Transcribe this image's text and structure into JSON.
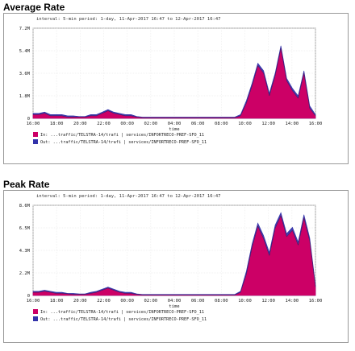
{
  "sections": [
    {
      "title": "Average Rate",
      "chart_data": {
        "type": "area",
        "header": "interval: 5-min  period: 1-day, 11-Apr-2017 16:47 to 12-Apr-2017 16:47",
        "xlabel": "time",
        "x_ticks": [
          "16:00",
          "18:00",
          "20:00",
          "22:00",
          "00:00",
          "02:00",
          "04:00",
          "06:00",
          "08:00",
          "10:00",
          "12:00",
          "14:00",
          "16:00"
        ],
        "y_ticks": [
          "0",
          "1.8M",
          "3.6M",
          "5.4M",
          "7.2M"
        ],
        "ylim": [
          0,
          7.2
        ],
        "legend": [
          {
            "name": "In: ...traffic/TELSTRA-14/trafi | services/INFORTRECO-PREF-SFO_11",
            "color": "#cc0066"
          },
          {
            "name": "Out: ...traffic/TELSTRA-14/trafi | services/INFORTRECO-PREF-SFO_11",
            "color": "#3333aa"
          }
        ],
        "series": [
          {
            "name": "In",
            "values": [
              0.3,
              0.3,
              0.4,
              0.2,
              0.2,
              0.2,
              0.1,
              0.1,
              0.1,
              0.1,
              0.2,
              0.2,
              0.4,
              0.6,
              0.4,
              0.3,
              0.2,
              0.2,
              0.1,
              0.05,
              0.05,
              0.05,
              0.05,
              0.05,
              0.05,
              0.05,
              0.05,
              0.05,
              0.05,
              0.05,
              0.05,
              0.05,
              0.05,
              0.05,
              0.05,
              0.05,
              0.2,
              1.2,
              2.6,
              4.2,
              3.6,
              1.8,
              3.4,
              5.6,
              3.0,
              2.2,
              1.6,
              3.6,
              0.8,
              0.2
            ]
          },
          {
            "name": "Out",
            "values": [
              0.4,
              0.4,
              0.5,
              0.3,
              0.3,
              0.3,
              0.2,
              0.2,
              0.15,
              0.15,
              0.3,
              0.3,
              0.5,
              0.7,
              0.5,
              0.4,
              0.3,
              0.3,
              0.15,
              0.1,
              0.1,
              0.1,
              0.1,
              0.1,
              0.1,
              0.1,
              0.1,
              0.1,
              0.1,
              0.1,
              0.1,
              0.1,
              0.1,
              0.1,
              0.1,
              0.1,
              0.3,
              1.4,
              2.8,
              4.4,
              3.8,
              2.0,
              3.6,
              5.8,
              3.2,
              2.4,
              1.8,
              3.8,
              1.0,
              0.3
            ]
          }
        ]
      }
    },
    {
      "title": "Peak Rate",
      "chart_data": {
        "type": "area",
        "header": "interval: 5-min  period: 1-day, 11-Apr-2017 16:47 to 12-Apr-2017 16:47",
        "xlabel": "time",
        "x_ticks": [
          "16:00",
          "18:00",
          "20:00",
          "22:00",
          "00:00",
          "02:00",
          "04:00",
          "06:00",
          "08:00",
          "10:00",
          "12:00",
          "14:00",
          "16:00"
        ],
        "y_ticks": [
          "0",
          "2.2M",
          "4.3M",
          "6.5M",
          "8.6M"
        ],
        "ylim": [
          0,
          8.6
        ],
        "legend": [
          {
            "name": "In: ...traffic/TELSTRA-14/trafi | services/INFORTRECO-PREF-SFO_11",
            "color": "#cc0066"
          },
          {
            "name": "Out: ...traffic/TELSTRA-14/trafi | services/INFORTRECO-PREF-SFO_11",
            "color": "#3333aa"
          }
        ],
        "series": [
          {
            "name": "In",
            "values": [
              0.3,
              0.3,
              0.4,
              0.3,
              0.2,
              0.2,
              0.15,
              0.1,
              0.1,
              0.1,
              0.2,
              0.3,
              0.5,
              0.7,
              0.5,
              0.3,
              0.2,
              0.2,
              0.1,
              0.05,
              0.05,
              0.05,
              0.05,
              0.05,
              0.05,
              0.05,
              0.05,
              0.05,
              0.05,
              0.05,
              0.05,
              0.05,
              0.05,
              0.05,
              0.05,
              0.05,
              0.3,
              2.0,
              4.6,
              6.6,
              5.4,
              3.8,
              6.4,
              7.6,
              5.6,
              6.2,
              4.8,
              7.4,
              5.2,
              0.8
            ]
          },
          {
            "name": "Out",
            "values": [
              0.4,
              0.4,
              0.5,
              0.4,
              0.3,
              0.3,
              0.2,
              0.2,
              0.15,
              0.15,
              0.3,
              0.4,
              0.6,
              0.8,
              0.6,
              0.4,
              0.3,
              0.3,
              0.15,
              0.1,
              0.1,
              0.1,
              0.1,
              0.1,
              0.1,
              0.1,
              0.1,
              0.1,
              0.1,
              0.1,
              0.1,
              0.1,
              0.1,
              0.1,
              0.1,
              0.1,
              0.4,
              2.3,
              4.9,
              6.9,
              5.7,
              4.1,
              6.7,
              7.9,
              5.9,
              6.5,
              5.1,
              7.7,
              5.5,
              1.0
            ]
          }
        ]
      }
    }
  ]
}
